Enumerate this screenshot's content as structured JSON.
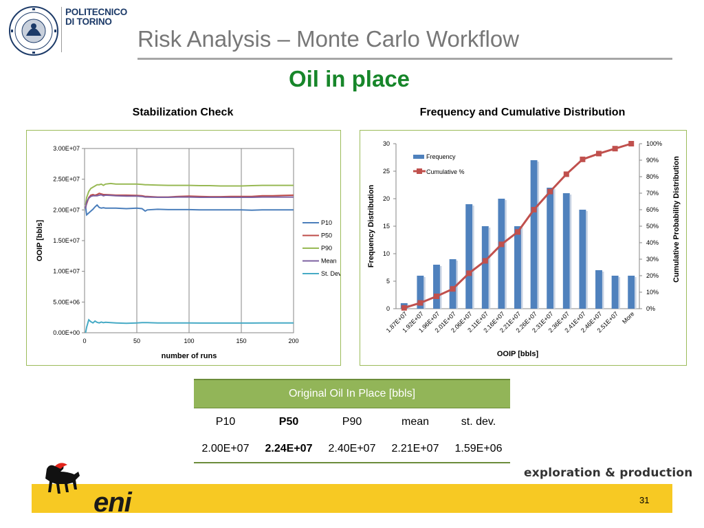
{
  "header": {
    "institution_name": "POLITECNICO\nDI TORINO",
    "title": "Risk Analysis – Monte Carlo Workflow",
    "subtitle": "Oil in place"
  },
  "chart_data": [
    {
      "type": "line",
      "title": "Stabilization Check",
      "xlabel": "number of runs",
      "ylabel": "OOIP [bbls]",
      "xlim": [
        0,
        200
      ],
      "ylim": [
        0,
        30000000
      ],
      "x_ticks": [
        0,
        50,
        100,
        150,
        200
      ],
      "y_ticks": [
        "0.00E+00",
        "5.00E+06",
        "1.00E+07",
        "1.50E+07",
        "2.00E+07",
        "2.50E+07",
        "3.00E+07"
      ],
      "grid": "vertical",
      "legend_position": "right",
      "series": [
        {
          "name": "P10",
          "color": "#4a7ebb",
          "x": [
            1,
            2,
            4,
            6,
            8,
            10,
            12,
            14,
            16,
            18,
            20,
            25,
            30,
            40,
            50,
            55,
            58,
            60,
            70,
            80,
            90,
            100,
            110,
            120,
            130,
            140,
            150,
            160,
            170,
            180,
            190,
            200
          ],
          "y": [
            20500000,
            19200000,
            19500000,
            19800000,
            20100000,
            20500000,
            20800000,
            20400000,
            20300000,
            20350000,
            20300000,
            20300000,
            20300000,
            20200000,
            20300000,
            20200000,
            19800000,
            20000000,
            20100000,
            20050000,
            20050000,
            20050000,
            20000000,
            20000000,
            20000000,
            20000000,
            20000000,
            19950000,
            20000000,
            20000000,
            20000000,
            20000000
          ]
        },
        {
          "name": "P50",
          "color": "#be4b48",
          "x": [
            1,
            2,
            4,
            6,
            8,
            10,
            12,
            14,
            16,
            18,
            20,
            25,
            30,
            40,
            50,
            55,
            58,
            60,
            70,
            80,
            90,
            100,
            110,
            120,
            130,
            140,
            150,
            160,
            170,
            180,
            190,
            200
          ],
          "y": [
            20500000,
            21000000,
            22000000,
            22400000,
            22500000,
            22400000,
            22500000,
            22700000,
            22600000,
            22500000,
            22500000,
            22450000,
            22400000,
            22400000,
            22350000,
            22300000,
            22200000,
            22200000,
            22100000,
            22100000,
            22200000,
            22250000,
            22200000,
            22150000,
            22150000,
            22200000,
            22200000,
            22200000,
            22300000,
            22300000,
            22350000,
            22400000
          ]
        },
        {
          "name": "P90",
          "color": "#98b954",
          "x": [
            1,
            2,
            4,
            6,
            8,
            10,
            12,
            14,
            16,
            18,
            20,
            25,
            30,
            40,
            50,
            55,
            58,
            60,
            70,
            80,
            90,
            100,
            110,
            120,
            130,
            140,
            150,
            160,
            170,
            180,
            190,
            200
          ],
          "y": [
            20800000,
            22000000,
            23000000,
            23500000,
            23700000,
            23900000,
            24100000,
            24100000,
            24200000,
            24000000,
            24200000,
            24300000,
            24200000,
            24200000,
            24200000,
            24150000,
            24100000,
            24100000,
            24050000,
            24000000,
            24000000,
            24000000,
            23950000,
            23950000,
            23900000,
            23900000,
            23900000,
            23950000,
            24000000,
            24000000,
            24000000,
            24000000
          ]
        },
        {
          "name": "Mean",
          "color": "#7d60a0",
          "x": [
            1,
            2,
            4,
            6,
            8,
            10,
            12,
            14,
            16,
            18,
            20,
            25,
            30,
            40,
            50,
            55,
            58,
            60,
            70,
            80,
            90,
            100,
            110,
            120,
            130,
            140,
            150,
            160,
            170,
            180,
            190,
            200
          ],
          "y": [
            20200000,
            21300000,
            21900000,
            22200000,
            22300000,
            22300000,
            22300000,
            22400000,
            22450000,
            22300000,
            22400000,
            22350000,
            22300000,
            22250000,
            22250000,
            22200000,
            22100000,
            22100000,
            22050000,
            22050000,
            22100000,
            22100000,
            22050000,
            22050000,
            22050000,
            22050000,
            22050000,
            22050000,
            22100000,
            22100000,
            22100000,
            22100000
          ]
        },
        {
          "name": "St. Dev.",
          "color": "#46aac5",
          "x": [
            1,
            2,
            4,
            6,
            8,
            10,
            12,
            14,
            16,
            18,
            20,
            25,
            30,
            40,
            50,
            55,
            58,
            60,
            70,
            80,
            90,
            100,
            110,
            120,
            130,
            140,
            150,
            160,
            170,
            180,
            190,
            200
          ],
          "y": [
            0,
            900000,
            2100000,
            1800000,
            1600000,
            1900000,
            1700000,
            1600000,
            1750000,
            1650000,
            1700000,
            1650000,
            1600000,
            1550000,
            1600000,
            1650000,
            1650000,
            1650000,
            1600000,
            1600000,
            1600000,
            1600000,
            1580000,
            1580000,
            1580000,
            1580000,
            1580000,
            1580000,
            1590000,
            1590000,
            1590000,
            1590000
          ]
        }
      ]
    },
    {
      "type": "bar",
      "title": "Frequency and Cumulative Distribution",
      "xlabel": "OOIP [bbls]",
      "ylabel": "Frequency Distribution",
      "y2label": "Cumulative Probability Distribution",
      "ylim": [
        0,
        30
      ],
      "y2lim": [
        0,
        1
      ],
      "y_ticks": [
        0,
        5,
        10,
        15,
        20,
        25,
        30
      ],
      "y2_ticks": [
        "0%",
        "10%",
        "20%",
        "30%",
        "40%",
        "50%",
        "60%",
        "70%",
        "80%",
        "90%",
        "100%"
      ],
      "legend_position": "top-left",
      "categories": [
        "1.87E+07",
        "1.92E+07",
        "1.96E+07",
        "2.01E+07",
        "2.06E+07",
        "2.11E+07",
        "2.16E+07",
        "2.21E+07",
        "2.26E+07",
        "2.31E+07",
        "2.36E+07",
        "2.41E+07",
        "2.46E+07",
        "2.51E+07",
        "More"
      ],
      "series": [
        {
          "name": "Frequency",
          "color": "#4f81bd",
          "values": [
            1,
            6,
            8,
            9,
            19,
            15,
            20,
            15,
            27,
            22,
            21,
            18,
            7,
            6,
            6
          ]
        },
        {
          "name": "Cumulative %",
          "color": "#c0504d",
          "axis": "secondary",
          "values": [
            0.005,
            0.035,
            0.075,
            0.12,
            0.215,
            0.29,
            0.39,
            0.465,
            0.6,
            0.71,
            0.815,
            0.905,
            0.94,
            0.97,
            1.0
          ]
        }
      ]
    }
  ],
  "table": {
    "header": "Original Oil In Place [bbls]",
    "labels": [
      "P10",
      "P50",
      "P90",
      "mean",
      "st. dev."
    ],
    "values": [
      "2.00E+07",
      "2.24E+07",
      "2.40E+07",
      "2.21E+07",
      "1.59E+06"
    ],
    "highlight_index": 1
  },
  "footer": {
    "division": "exploration & production",
    "brand": "eni",
    "page_number": "31"
  },
  "colors": {
    "title_gray": "#777777",
    "subtitle_green": "#17862a",
    "table_header_green": "#92b558",
    "footer_yellow": "#f7c923"
  }
}
